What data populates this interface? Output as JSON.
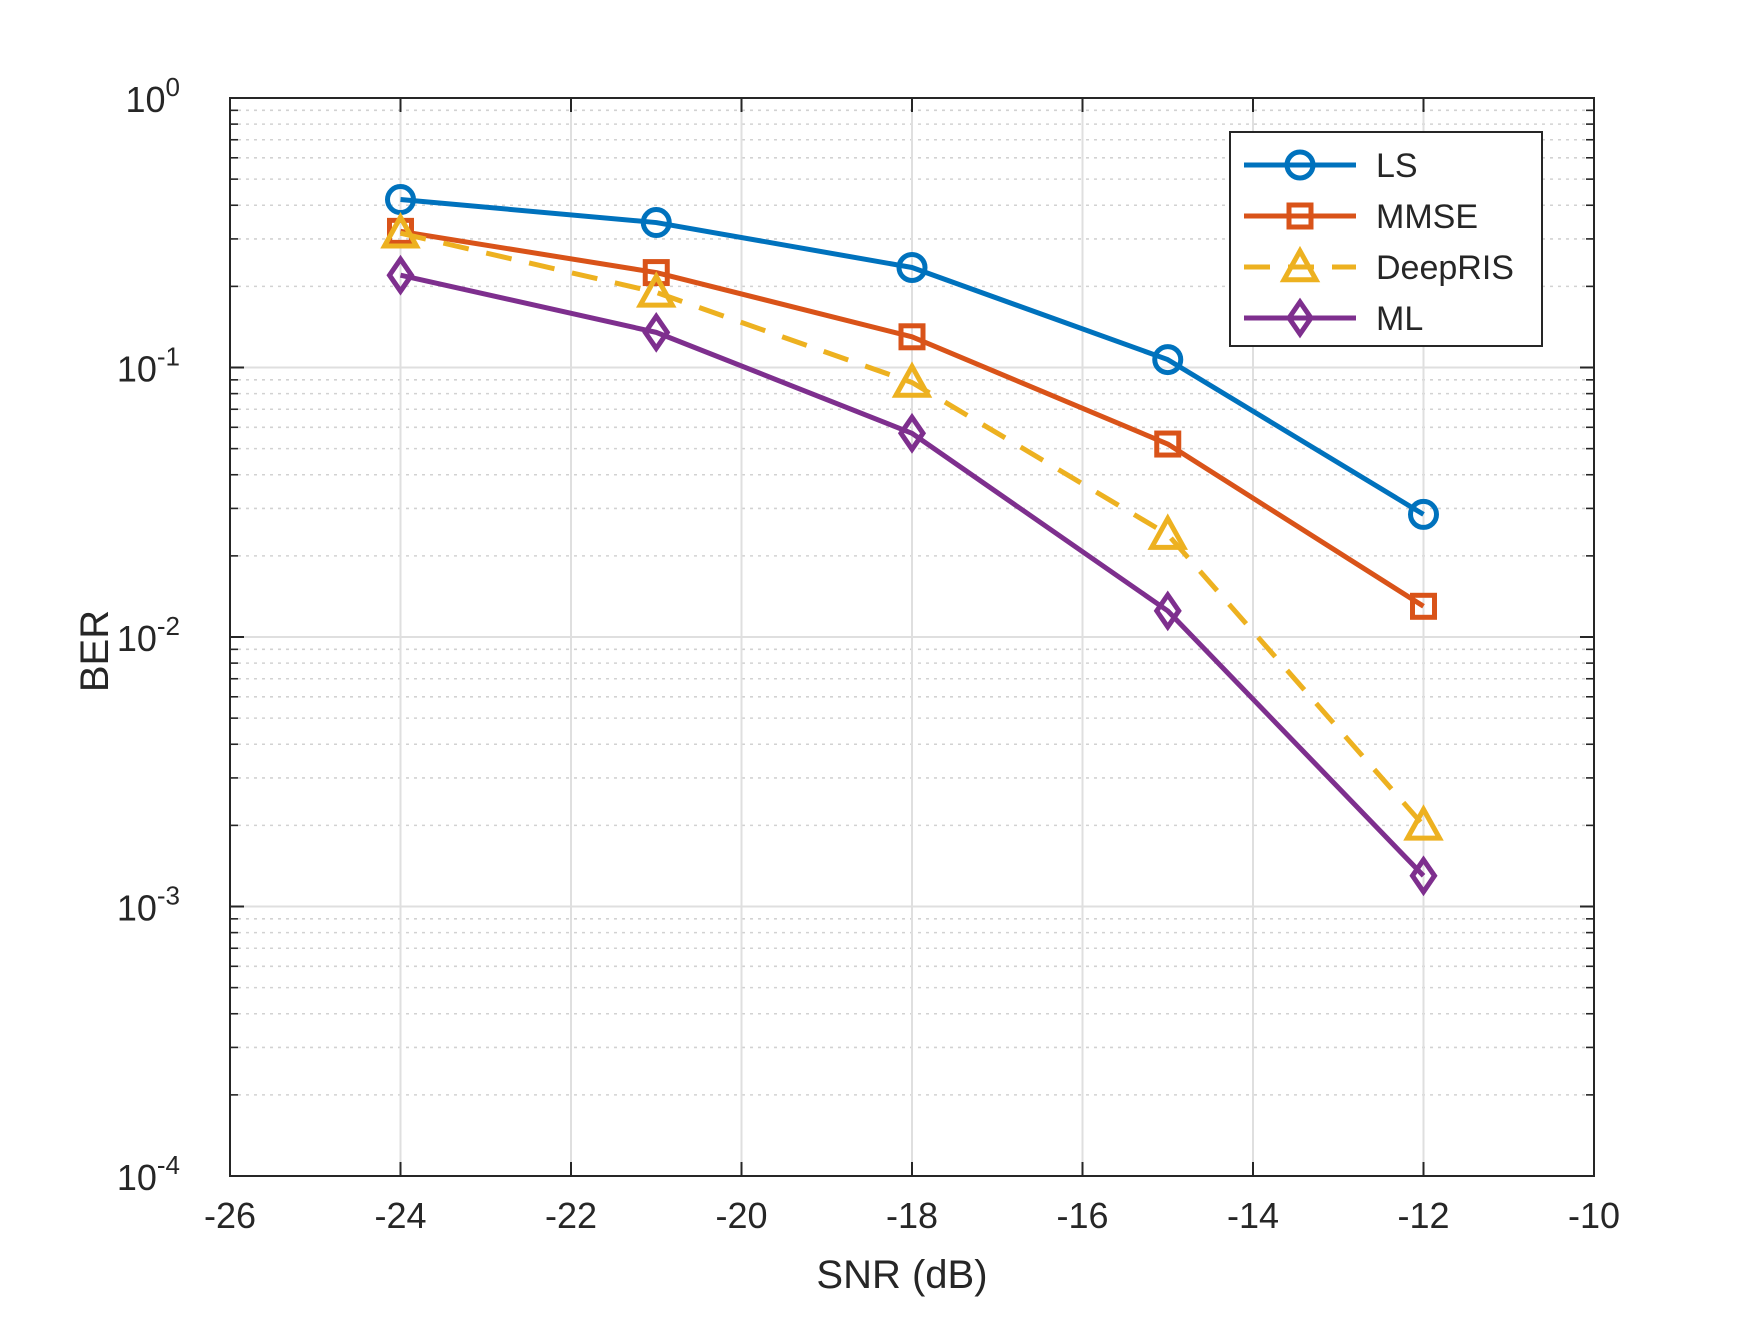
{
  "chart_data": {
    "type": "line",
    "title": "",
    "xlabel": "SNR (dB)",
    "ylabel": "BER",
    "xlim": [
      -26,
      -10
    ],
    "ylim": [
      0.0001,
      1
    ],
    "yscale": "log",
    "grid": true,
    "legend_position": "top-right",
    "x_ticks": [
      -26,
      -24,
      -22,
      -20,
      -18,
      -16,
      -14,
      -12,
      -10
    ],
    "x_tick_labels": [
      "-26",
      "-24",
      "-22",
      "-20",
      "-18",
      "-16",
      "-14",
      "-12",
      "-10"
    ],
    "y_ticks": [
      {
        "value": 1,
        "base": "10",
        "exp": "0"
      },
      {
        "value": 0.1,
        "base": "10",
        "exp": "-1"
      },
      {
        "value": 0.01,
        "base": "10",
        "exp": "-2"
      },
      {
        "value": 0.001,
        "base": "10",
        "exp": "-3"
      },
      {
        "value": 0.0001,
        "base": "10",
        "exp": "-4"
      }
    ],
    "x": [
      -24,
      -21,
      -18,
      -15,
      -12
    ],
    "series": [
      {
        "name": "LS",
        "values": [
          0.42,
          0.345,
          0.235,
          0.107,
          0.0285
        ],
        "color": "#0072BD",
        "marker": "circle",
        "dashed": false
      },
      {
        "name": "MMSE",
        "values": [
          0.32,
          0.225,
          0.13,
          0.052,
          0.013
        ],
        "color": "#D95319",
        "marker": "square",
        "dashed": false
      },
      {
        "name": "DeepRIS",
        "values": [
          0.315,
          0.19,
          0.088,
          0.024,
          0.002
        ],
        "color": "#EDB120",
        "marker": "triangle",
        "dashed": true
      },
      {
        "name": "ML",
        "values": [
          0.22,
          0.135,
          0.057,
          0.0125,
          0.0013
        ],
        "color": "#7E2F8E",
        "marker": "diamond",
        "dashed": false
      }
    ]
  }
}
